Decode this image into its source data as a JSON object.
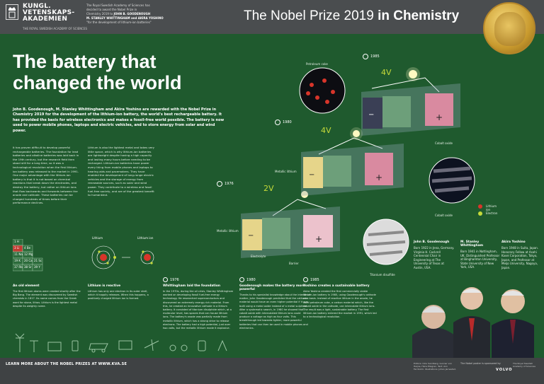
{
  "header": {
    "org_name_lines": [
      "KUNGL.",
      "VETENSKAPS-",
      "AKADEMIEN"
    ],
    "org_sub": "THE ROYAL SWEDISH ACADEMY OF SCIENCES",
    "info_lines": [
      "The Royal Swedish Academy of Sciences has",
      "decided to award the Nobel Prize in",
      "Chemistry 2019 to",
      "JOHN B. GOODENOUGH",
      "M. STANLEY WHITTINGHAM and AKIRA YOSHINO",
      "\"for the development of lithium-ion batteries\""
    ],
    "prize_title_light": "The Nobel Prize 2019",
    "prize_title_bold": "in Chemistry"
  },
  "title_lines": [
    "The battery that",
    "changed the world"
  ],
  "lead": "John B. Goodenough, M. Stanley Whittingham and Akira Yoshino are rewarded with the Nobel Prize in Chemistry 2019 for the development of the lithium-ion battery, the world's best rechargeable battery. It has provided the basis for wireless electronics and makes a fossil-free world possible. The battery is now used to power mobile phones, laptops and electric vehicles, and to store energy from solar and wind power.",
  "body_col1": "It has proven difficult to develop powerful rechargeable batteries. The foundation for lead batteries and alkaline batteries was laid back in the 19th century, but the research field then stood still for a long time, so it was a technological revolution when the first lithium-ion battery was released to the market in 1991. One major advantage with the lithium-ion battery is that it is not based on chemical reactions that break down the electrodes, and destroy the battery, but rather on lithium ions that flow backwards and forwards between the anode and cathode. These batteries can be charged hundreds of times before their performance declines.",
  "body_col2": "Lithium is also the lightest metal and takes very little space, which is why lithium-ion batteries are lightweight despite having a high capacity and lasting many hours before needing to be recharged. Lithium-ion batteries have power every thing from mobile phones and laptops to hearing aids and pacemakers. They have enabled the development of long-range electric vehicles and the storage of energy from renewable sources, such as solar and wind power. They contribute to a wireless and fossil fuel-free society, and are of the greatest benefit to humankind.",
  "diagram": {
    "years": [
      "1985",
      "1980",
      "1976"
    ],
    "voltages": [
      "4V",
      "4V",
      "2V"
    ],
    "labels": {
      "petroleum_coke": "Petroleum coke",
      "metallic_lithium_1": "Metallic lithium",
      "metallic_lithium_2": "Metallic lithium",
      "cobalt_oxide_1": "Cobalt oxide",
      "cobalt_oxide_2": "Cobalt oxide",
      "electrolyte": "Electrolyte",
      "barrier": "Barrier",
      "titanium_disulfide": "Titanium disulfide",
      "legend_lithium_ion": "Lithium ion",
      "legend_electron": "Electron"
    }
  },
  "periodic": {
    "cells": [
      {
        "sym": "H",
        "num": "1"
      },
      {
        "sym": "Li",
        "num": "3"
      },
      {
        "sym": "Be",
        "num": "4"
      },
      {
        "sym": "Na",
        "num": "11"
      },
      {
        "sym": "Mg",
        "num": "12"
      },
      {
        "sym": "K",
        "num": "19"
      },
      {
        "sym": "Ca",
        "num": "20"
      },
      {
        "sym": "Sc",
        "num": "21"
      },
      {
        "sym": "Rb",
        "num": "37"
      },
      {
        "sym": "Sr",
        "num": "38"
      },
      {
        "sym": "Y",
        "num": "39"
      }
    ]
  },
  "atoms": {
    "lithium_label": "Lithium",
    "lithium_ion_label": "Lithium ion"
  },
  "timeline": [
    {
      "year": "",
      "head": "An old element",
      "text": "The first lithium atoms were created shortly after the Big Bang. The element was discovered by Swedish chemists in 1817. Its name comes from the Greek word for stone, lithos. Lithium is the lightest metal despite its weighty name."
    },
    {
      "year": "",
      "head": "Lithium is reactive",
      "text": "Lithium has only one electron in its outer shell, which it happily releases. When this happens, a positively charged lithium ion is formed."
    },
    {
      "year": "1976",
      "head": "Whittingham laid the foundation",
      "text": "In the 1970s, during the oil crisis, Stanley Whittingham worked on developing fossil fuel-free energy technology. He researched superconductors and discovered an extremely energy-rich material. From this, he created an innovative cathode in a lithium battery. It consisted of titanium disulphide which, at a molecular level, has spaces that can house lithium ions. The battery's anode was partially made from metallic lithium, which has a strong drive to release electrons. The battery had a high potential, just over two volts, but the metallic lithium made it explosive."
    },
    {
      "year": "1980",
      "head": "Goodenough makes the battery more powerful",
      "text": "Thanks to his specialist knowledge about the interior of matter, John Goodenough predicted that the cathode material would have an even higher potential if it was built using a metal oxide instead of a metal sulphide. After a systematic search, in 1980 he showed that cobalt oxide with intercalated lithium ions could produce a voltage as high as four volts. This breakthrough led towards lighter, more powerful batteries that can then be used in mobile phones and electronics."
    },
    {
      "year": "1985",
      "head": "Yoshino creates a sustainable battery",
      "text": "Akira Yoshino created the first commercially viable lithium-ion battery in 1985, using Goodenough's cathode as a basis. Instead of reactive lithium in the anode, he used petroleum coke, a carbon material which, like the cobalt oxide in the cathode, can intercalate lithium ions. The result was a light, sustainable battery. The first lithium-ion battery entered the market in 1991, which led to a technological revolution."
    }
  ],
  "laureates": [
    {
      "name": "John B. Goodenough",
      "info": "Born 1922 in Jena, Germany. Virginia H. Cockrell Centennial Chair in Engineering at The University of Texas at Austin, USA."
    },
    {
      "name": "M. Stanley Whittingham",
      "info": "Born 1941 in Nottingham, UK. Distinguished Professor at Binghamton University, State University of New York, USA."
    },
    {
      "name": "Akira Yoshino",
      "info": "Born 1948 in Suita, Japan. Honorary Fellow at Asahi Kasei Corporation, Tokyo, Japan, and Professor at Meijo University, Nagoya, Japan."
    }
  ],
  "footer": {
    "link": "LEARN MORE ABOUT THE NOBEL PRIZES AT WWW.KVA.SE",
    "credit": "Editors: Olov Sandberg, Gunnar von Heijne, Hans Ellegren. Text: Ann Fernholm. Illustrations: Johan Jarnestad.",
    "sponsor": "The Nobel poster is sponsored by",
    "volvo": "VOLVO",
    "acad": "The Royal Swedish Academy of Sciences"
  },
  "colors": {
    "background": "#1f5a2e",
    "header": "#4a4d4f",
    "cathode_pink": "#e8a0b0",
    "anode_yellow": "#e8d98a",
    "electron_ball": "#c5da3a",
    "ion_red": "#d8352a"
  }
}
